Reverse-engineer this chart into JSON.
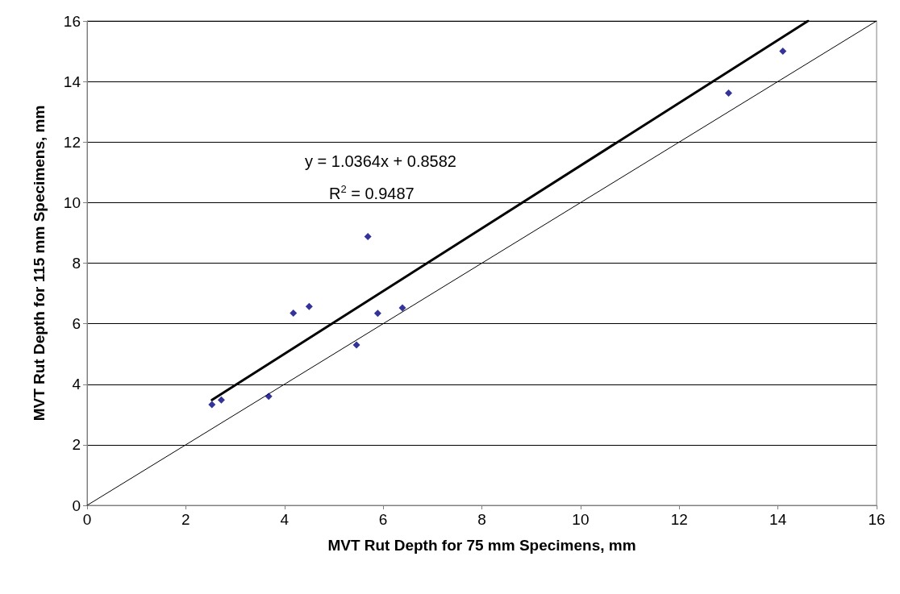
{
  "chart_data": {
    "type": "scatter",
    "xlabel": "MVT Rut Depth for 75 mm Specimens, mm",
    "ylabel": "MVT Rut Depth for 115 mm Specimens, mm",
    "xlim": [
      0,
      16
    ],
    "xticks": [
      0,
      2,
      4,
      6,
      8,
      10,
      12,
      14,
      16
    ],
    "ylim": [
      0,
      16
    ],
    "yticks": [
      0,
      2,
      4,
      6,
      8,
      10,
      12,
      14,
      16
    ],
    "grid": "y",
    "series": [
      {
        "color": "#000080",
        "marker": "diamond",
        "x": [
          2.53,
          2.72,
          3.68,
          4.18,
          4.5,
          5.46,
          5.69,
          5.89,
          6.39,
          13.0,
          14.1
        ],
        "values": [
          3.33,
          3.48,
          3.6,
          6.35,
          6.57,
          5.3,
          8.88,
          6.34,
          6.52,
          13.62,
          15.0
        ]
      },
      {
        "type": "line",
        "color": "#000000",
        "marker": "none",
        "line_style": "solid",
        "x": [
          2.53,
          14.61
        ],
        "values": [
          3.48,
          16
        ]
      },
      {
        "type": "line",
        "color": "#000000",
        "marker": "none",
        "line_style": "solid",
        "x": [
          0,
          16
        ],
        "values": [
          0,
          16
        ]
      }
    ],
    "annotations": [
      "y = 1.0364x + 0.8582",
      "R$^{2}$ = 0.9487"
    ]
  }
}
